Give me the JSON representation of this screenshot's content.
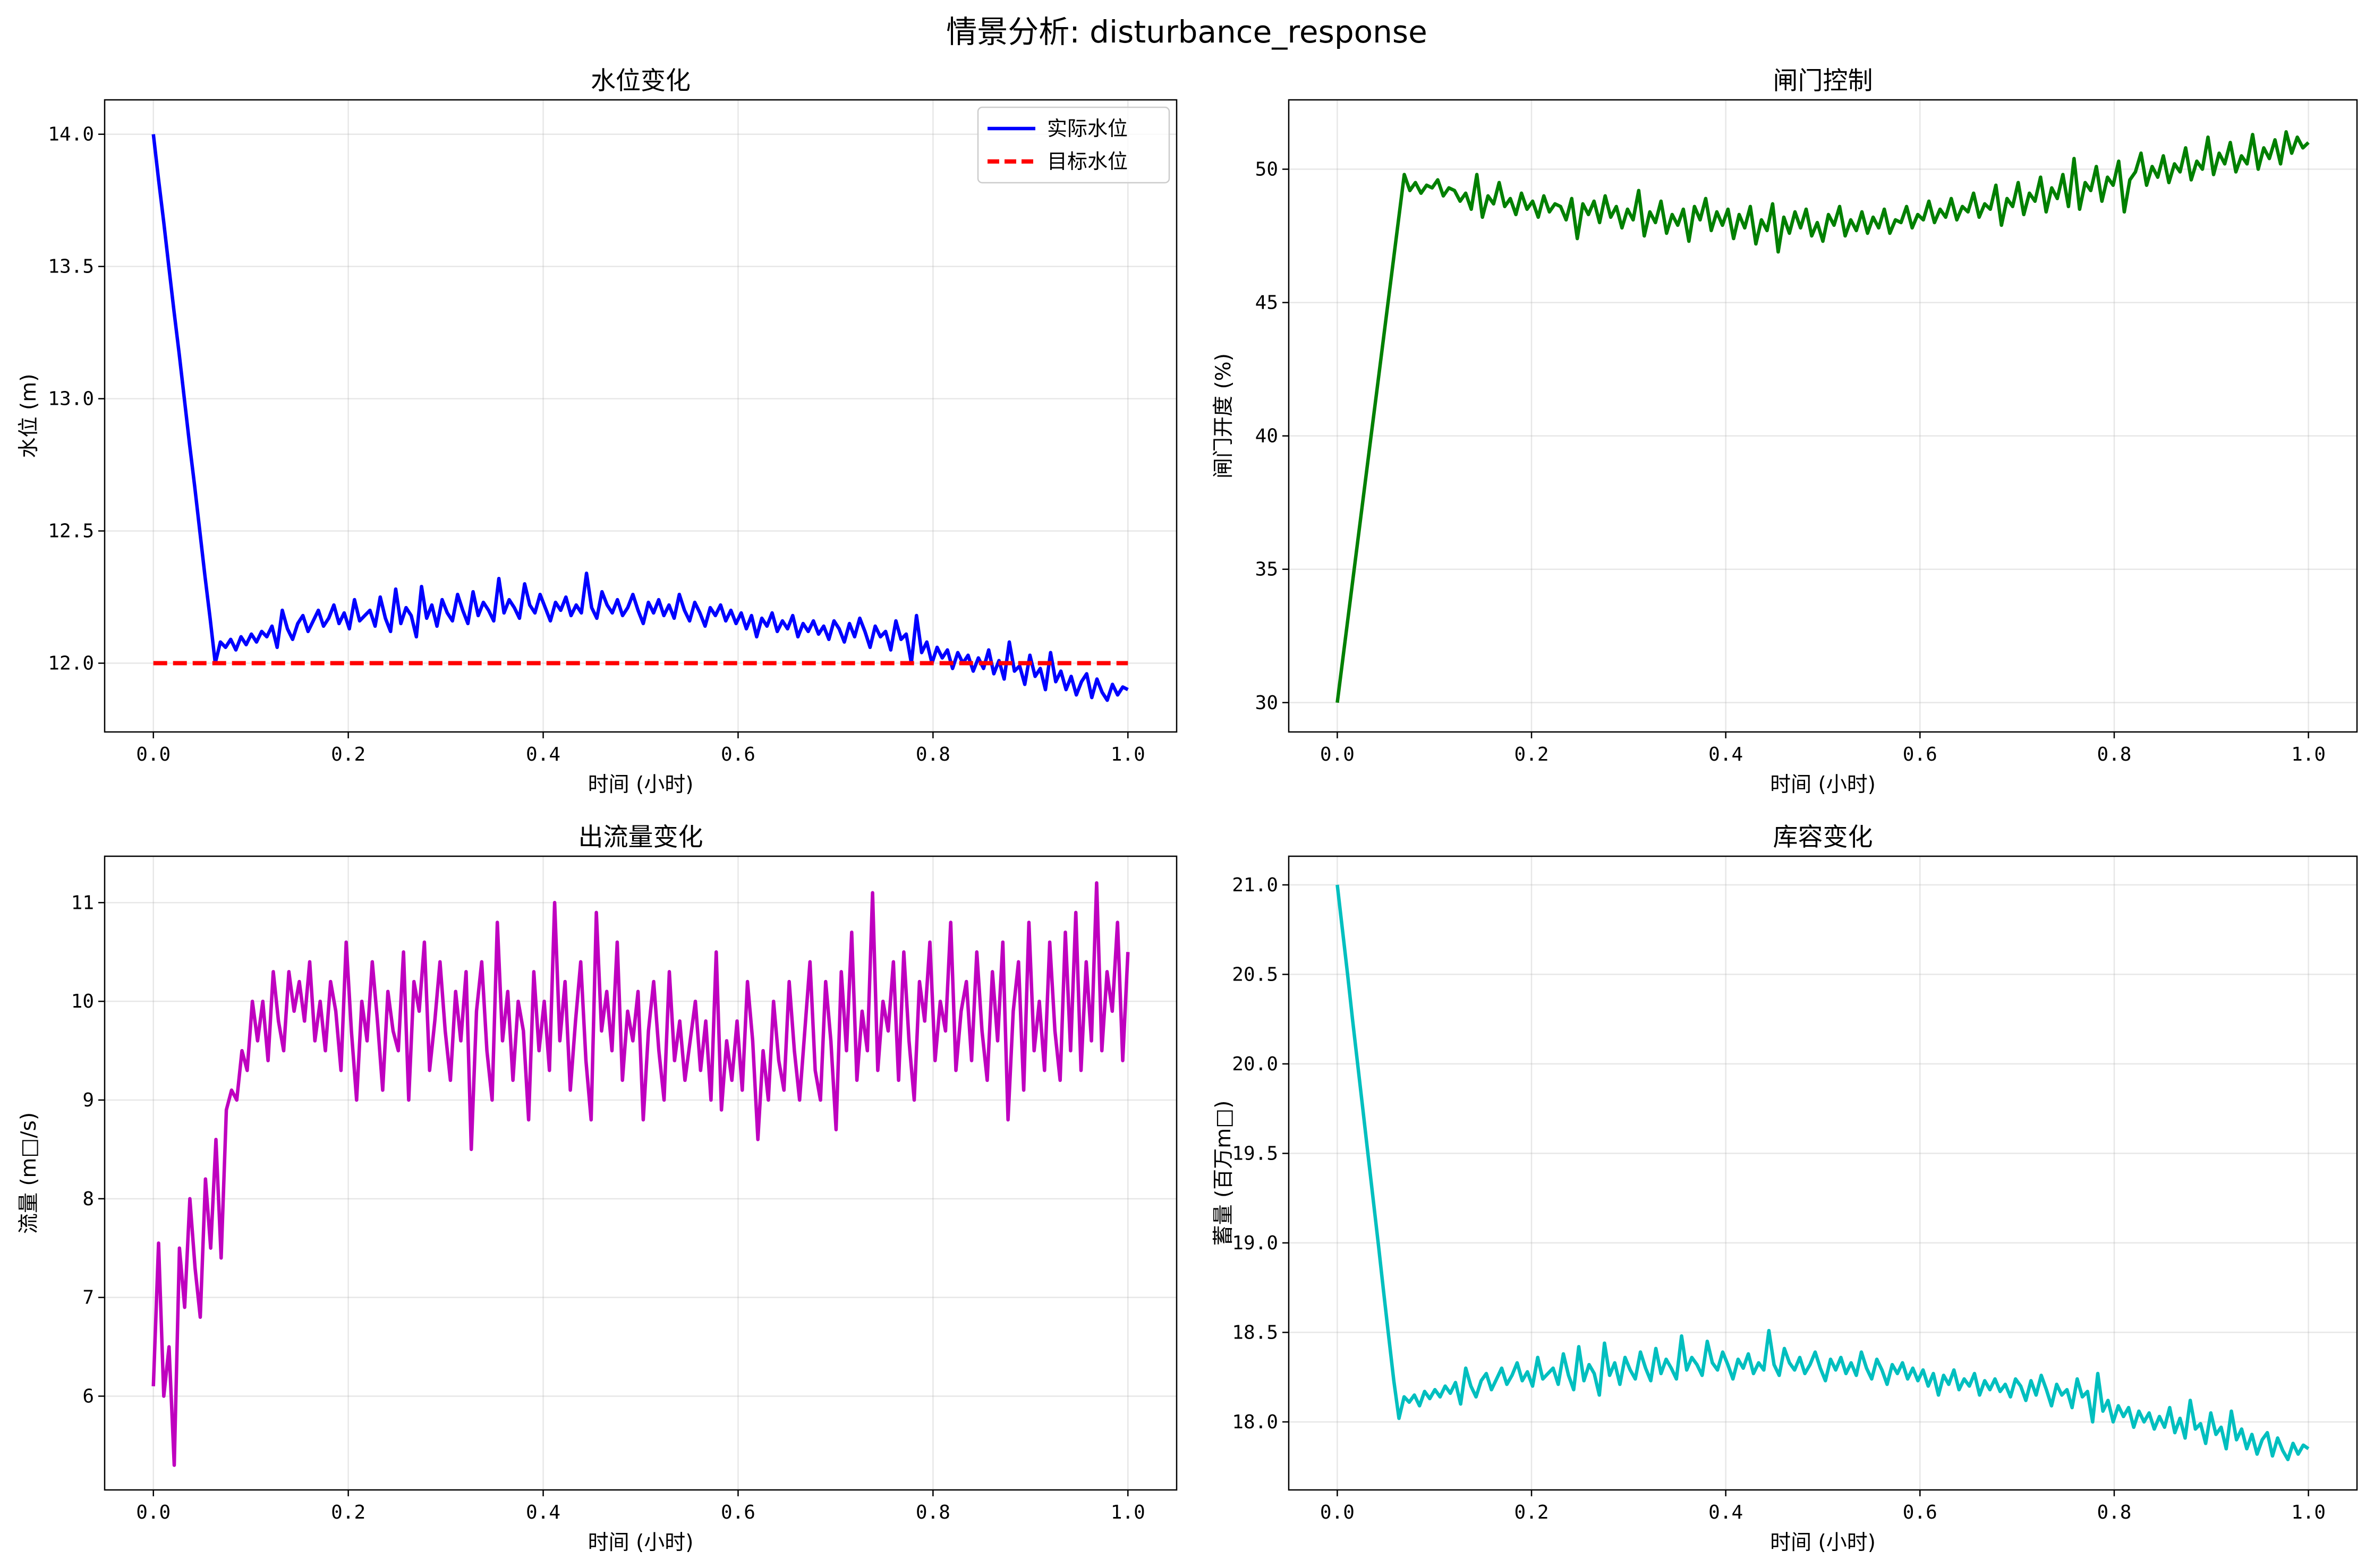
{
  "suptitle": "情景分析: disturbance_response",
  "colors": {
    "blue": "#0000ff",
    "red": "#ff0000",
    "green": "#008000",
    "magenta": "#bf00bf",
    "cyan": "#00bfbf"
  },
  "chart_data": [
    {
      "type": "line",
      "title": "水位变化",
      "xlabel": "时间 (小时)",
      "ylabel": "水位 (m)",
      "xlim": [
        -0.05,
        1.05
      ],
      "ylim": [
        11.74,
        14.13
      ],
      "xticks": [
        "0.0",
        "0.2",
        "0.4",
        "0.6",
        "0.8",
        "1.0"
      ],
      "yticks": [
        "12.0",
        "12.5",
        "13.0",
        "13.5",
        "14.0"
      ],
      "legend": "top-right",
      "grid": true,
      "series": [
        {
          "name": "实际水位",
          "color": "#0000ff",
          "style": "solid",
          "x_start": 0.0,
          "x_end": 1.0,
          "values": [
            14.0,
            13.83,
            13.67,
            13.5,
            13.33,
            13.17,
            13.0,
            12.83,
            12.67,
            12.5,
            12.33,
            12.17,
            12.0,
            12.08,
            12.06,
            12.09,
            12.05,
            12.1,
            12.07,
            12.11,
            12.08,
            12.12,
            12.1,
            12.14,
            12.06,
            12.2,
            12.13,
            12.09,
            12.15,
            12.18,
            12.12,
            12.16,
            12.2,
            12.14,
            12.17,
            12.22,
            12.15,
            12.19,
            12.13,
            12.24,
            12.16,
            12.18,
            12.2,
            12.14,
            12.25,
            12.17,
            12.12,
            12.28,
            12.15,
            12.21,
            12.18,
            12.1,
            12.29,
            12.17,
            12.22,
            12.14,
            12.24,
            12.19,
            12.16,
            12.26,
            12.2,
            12.15,
            12.27,
            12.18,
            12.23,
            12.2,
            12.16,
            12.32,
            12.19,
            12.24,
            12.21,
            12.17,
            12.3,
            12.22,
            12.19,
            12.26,
            12.21,
            12.16,
            12.23,
            12.2,
            12.25,
            12.18,
            12.22,
            12.19,
            12.34,
            12.21,
            12.17,
            12.27,
            12.22,
            12.19,
            12.24,
            12.18,
            12.21,
            12.26,
            12.2,
            12.15,
            12.23,
            12.19,
            12.24,
            12.18,
            12.22,
            12.17,
            12.26,
            12.2,
            12.16,
            12.23,
            12.19,
            12.14,
            12.21,
            12.18,
            12.22,
            12.16,
            12.2,
            12.15,
            12.19,
            12.13,
            12.18,
            12.1,
            12.17,
            12.14,
            12.19,
            12.12,
            12.16,
            12.13,
            12.18,
            12.1,
            12.15,
            12.12,
            12.16,
            12.11,
            12.14,
            12.09,
            12.16,
            12.13,
            12.08,
            12.15,
            12.1,
            12.17,
            12.12,
            12.06,
            12.14,
            12.1,
            12.12,
            12.05,
            12.16,
            12.09,
            12.11,
            12.0,
            12.18,
            12.04,
            12.08,
            12.0,
            12.06,
            12.02,
            12.05,
            11.98,
            12.04,
            12.0,
            12.03,
            11.97,
            12.02,
            11.98,
            12.05,
            11.96,
            12.01,
            11.94,
            12.08,
            11.97,
            11.99,
            11.92,
            12.03,
            11.95,
            11.98,
            11.9,
            12.04,
            11.93,
            11.97,
            11.9,
            11.95,
            11.88,
            11.93,
            11.96,
            11.87,
            11.94,
            11.89,
            11.86,
            11.92,
            11.88,
            11.91,
            11.9
          ]
        },
        {
          "name": "目标水位",
          "color": "#ff0000",
          "style": "dashed",
          "x_start": 0.0,
          "x_end": 1.0,
          "values": [
            12.0,
            12.0
          ]
        }
      ]
    },
    {
      "type": "line",
      "title": "闸门控制",
      "xlabel": "时间 (小时)",
      "ylabel": "闸门开度 (%)",
      "xlim": [
        -0.05,
        1.05
      ],
      "ylim": [
        28.9,
        52.6
      ],
      "xticks": [
        "0.0",
        "0.2",
        "0.4",
        "0.6",
        "0.8",
        "1.0"
      ],
      "yticks": [
        "30",
        "35",
        "40",
        "45",
        "50"
      ],
      "grid": true,
      "series": [
        {
          "name": "",
          "color": "#008000",
          "style": "solid",
          "x_start": 0.0,
          "x_end": 1.0,
          "values": [
            30.0,
            31.65,
            33.3,
            34.95,
            36.6,
            38.25,
            39.9,
            41.55,
            43.2,
            44.85,
            46.5,
            48.15,
            49.8,
            49.2,
            49.5,
            49.1,
            49.4,
            49.3,
            49.6,
            49.0,
            49.3,
            49.2,
            48.8,
            49.1,
            48.5,
            49.8,
            48.2,
            49.0,
            48.7,
            49.5,
            48.6,
            48.9,
            48.3,
            49.1,
            48.5,
            48.8,
            48.2,
            49.0,
            48.4,
            48.7,
            48.6,
            48.1,
            48.9,
            47.4,
            48.7,
            48.3,
            48.8,
            48.0,
            49.0,
            48.2,
            48.6,
            47.8,
            48.5,
            48.1,
            49.2,
            47.5,
            48.4,
            48.0,
            48.8,
            47.6,
            48.3,
            47.9,
            48.5,
            47.3,
            48.6,
            48.1,
            48.9,
            47.7,
            48.4,
            47.9,
            48.5,
            47.4,
            48.3,
            47.8,
            48.6,
            47.2,
            48.1,
            47.7,
            48.7,
            46.9,
            48.2,
            47.6,
            48.4,
            47.8,
            48.5,
            47.5,
            48.0,
            47.3,
            48.3,
            47.9,
            48.6,
            47.5,
            48.1,
            47.7,
            48.4,
            47.6,
            48.2,
            47.8,
            48.5,
            47.6,
            48.1,
            48.0,
            48.6,
            47.8,
            48.3,
            48.1,
            48.8,
            48.0,
            48.5,
            48.2,
            48.9,
            48.1,
            48.6,
            48.4,
            49.1,
            48.2,
            48.7,
            48.5,
            49.4,
            47.9,
            48.9,
            48.6,
            49.5,
            48.3,
            49.1,
            48.8,
            49.7,
            48.4,
            49.3,
            48.9,
            49.8,
            48.6,
            50.4,
            48.5,
            49.5,
            49.2,
            50.1,
            48.8,
            49.7,
            49.4,
            50.3,
            48.4,
            49.6,
            49.9,
            50.6,
            49.4,
            50.1,
            49.7,
            50.5,
            49.5,
            50.2,
            49.9,
            50.8,
            49.6,
            50.3,
            50.0,
            51.2,
            49.8,
            50.6,
            50.2,
            51.0,
            49.9,
            50.5,
            50.2,
            51.3,
            50.0,
            50.8,
            50.4,
            51.1,
            50.2,
            51.4,
            50.6,
            51.2,
            50.8,
            51.0
          ]
        }
      ]
    },
    {
      "type": "line",
      "title": "出流量变化",
      "xlabel": "时间 (小时)",
      "ylabel": "流量 (m□/s)",
      "xlim": [
        -0.05,
        1.05
      ],
      "ylim": [
        5.05,
        11.47
      ],
      "xticks": [
        "0.0",
        "0.2",
        "0.4",
        "0.6",
        "0.8",
        "1.0"
      ],
      "yticks": [
        "6",
        "7",
        "8",
        "9",
        "10",
        "11"
      ],
      "grid": true,
      "series": [
        {
          "name": "",
          "color": "#bf00bf",
          "style": "solid",
          "x_start": 0.0,
          "x_end": 1.0,
          "values": [
            6.1,
            7.55,
            6.0,
            6.5,
            5.3,
            7.5,
            6.9,
            8.0,
            7.3,
            6.8,
            8.2,
            7.5,
            8.6,
            7.4,
            8.9,
            9.1,
            9.0,
            9.5,
            9.3,
            10.0,
            9.6,
            10.0,
            9.4,
            10.3,
            9.8,
            9.5,
            10.3,
            9.9,
            10.2,
            9.8,
            10.4,
            9.6,
            10.0,
            9.5,
            10.2,
            9.9,
            9.3,
            10.6,
            9.7,
            9.0,
            10.0,
            9.6,
            10.4,
            9.8,
            9.1,
            10.1,
            9.7,
            9.5,
            10.5,
            9.0,
            10.2,
            9.9,
            10.6,
            9.3,
            9.8,
            10.4,
            9.7,
            9.2,
            10.1,
            9.6,
            10.3,
            8.5,
            9.9,
            10.4,
            9.5,
            9.0,
            10.8,
            9.6,
            10.1,
            9.2,
            10.0,
            9.7,
            8.8,
            10.3,
            9.5,
            10.0,
            9.3,
            11.0,
            9.6,
            10.2,
            9.1,
            9.8,
            10.4,
            9.4,
            8.8,
            10.9,
            9.7,
            10.1,
            9.5,
            10.6,
            9.2,
            9.9,
            9.6,
            10.1,
            8.8,
            9.7,
            10.2,
            9.5,
            9.0,
            10.3,
            9.4,
            9.8,
            9.2,
            9.6,
            10.0,
            9.3,
            9.8,
            9.0,
            10.5,
            8.9,
            9.6,
            9.2,
            9.8,
            9.1,
            10.2,
            9.6,
            8.6,
            9.5,
            9.0,
            10.0,
            9.4,
            9.1,
            10.2,
            9.5,
            9.0,
            9.7,
            10.4,
            9.3,
            9.0,
            10.2,
            9.6,
            8.7,
            10.3,
            9.5,
            10.7,
            9.2,
            9.9,
            9.5,
            11.1,
            9.3,
            10.0,
            9.7,
            10.4,
            9.2,
            10.5,
            9.6,
            9.0,
            10.2,
            9.8,
            10.6,
            9.4,
            10.0,
            9.7,
            10.8,
            9.3,
            9.9,
            10.2,
            9.4,
            10.5,
            9.7,
            9.2,
            10.3,
            9.6,
            10.6,
            8.8,
            9.9,
            10.4,
            9.1,
            10.8,
            9.5,
            10.0,
            9.3,
            10.6,
            9.7,
            9.2,
            10.7,
            9.5,
            10.9,
            9.3,
            10.4,
            9.6,
            11.2,
            9.5,
            10.3,
            9.9,
            10.8,
            9.4,
            10.5
          ]
        }
      ]
    },
    {
      "type": "line",
      "title": "库容变化",
      "xlabel": "时间 (小时)",
      "ylabel": "蓄量 (百万m□)",
      "xlim": [
        -0.05,
        1.05
      ],
      "ylim": [
        17.62,
        21.16
      ],
      "xticks": [
        "0.0",
        "0.2",
        "0.4",
        "0.6",
        "0.8",
        "1.0"
      ],
      "yticks": [
        "18.0",
        "18.5",
        "19.0",
        "19.5",
        "20.0",
        "20.5",
        "21.0"
      ],
      "grid": true,
      "series": [
        {
          "name": "",
          "color": "#00bfbf",
          "style": "solid",
          "x_start": 0.0,
          "x_end": 1.0,
          "values": [
            21.0,
            20.75,
            20.5,
            20.24,
            19.99,
            19.74,
            19.49,
            19.24,
            18.99,
            18.73,
            18.48,
            18.23,
            18.02,
            18.14,
            18.11,
            18.15,
            18.09,
            18.17,
            18.13,
            18.18,
            18.14,
            18.2,
            18.16,
            18.22,
            18.1,
            18.3,
            18.2,
            18.14,
            18.23,
            18.27,
            18.18,
            18.24,
            18.3,
            18.21,
            18.26,
            18.33,
            18.23,
            18.28,
            18.2,
            18.36,
            18.24,
            18.27,
            18.3,
            18.21,
            18.38,
            18.26,
            18.18,
            18.42,
            18.23,
            18.32,
            18.27,
            18.15,
            18.44,
            18.26,
            18.33,
            18.21,
            18.36,
            18.29,
            18.24,
            18.39,
            18.3,
            18.23,
            18.41,
            18.27,
            18.35,
            18.3,
            18.24,
            18.48,
            18.29,
            18.36,
            18.32,
            18.26,
            18.45,
            18.33,
            18.29,
            18.39,
            18.32,
            18.24,
            18.35,
            18.3,
            18.38,
            18.27,
            18.33,
            18.29,
            18.51,
            18.32,
            18.26,
            18.41,
            18.33,
            18.29,
            18.36,
            18.27,
            18.32,
            18.39,
            18.3,
            18.23,
            18.35,
            18.29,
            18.36,
            18.27,
            18.33,
            18.26,
            18.39,
            18.3,
            18.24,
            18.35,
            18.29,
            18.21,
            18.32,
            18.27,
            18.33,
            18.24,
            18.3,
            18.23,
            18.29,
            18.2,
            18.27,
            18.15,
            18.26,
            18.21,
            18.29,
            18.18,
            18.24,
            18.2,
            18.27,
            18.15,
            18.23,
            18.18,
            18.24,
            18.17,
            18.21,
            18.14,
            18.24,
            18.2,
            18.12,
            18.23,
            18.15,
            18.26,
            18.18,
            18.09,
            18.21,
            18.15,
            18.18,
            18.08,
            18.24,
            18.14,
            18.17,
            18.0,
            18.27,
            18.06,
            18.12,
            18.0,
            18.09,
            18.03,
            18.08,
            17.97,
            18.06,
            18.0,
            18.05,
            17.96,
            18.03,
            17.97,
            18.08,
            17.94,
            18.02,
            17.91,
            18.12,
            17.96,
            17.99,
            17.88,
            18.05,
            17.93,
            17.97,
            17.85,
            18.06,
            17.9,
            17.96,
            17.85,
            17.93,
            17.82,
            17.9,
            17.94,
            17.81,
            17.91,
            17.84,
            17.79,
            17.88,
            17.82,
            17.87,
            17.85
          ]
        }
      ]
    }
  ]
}
